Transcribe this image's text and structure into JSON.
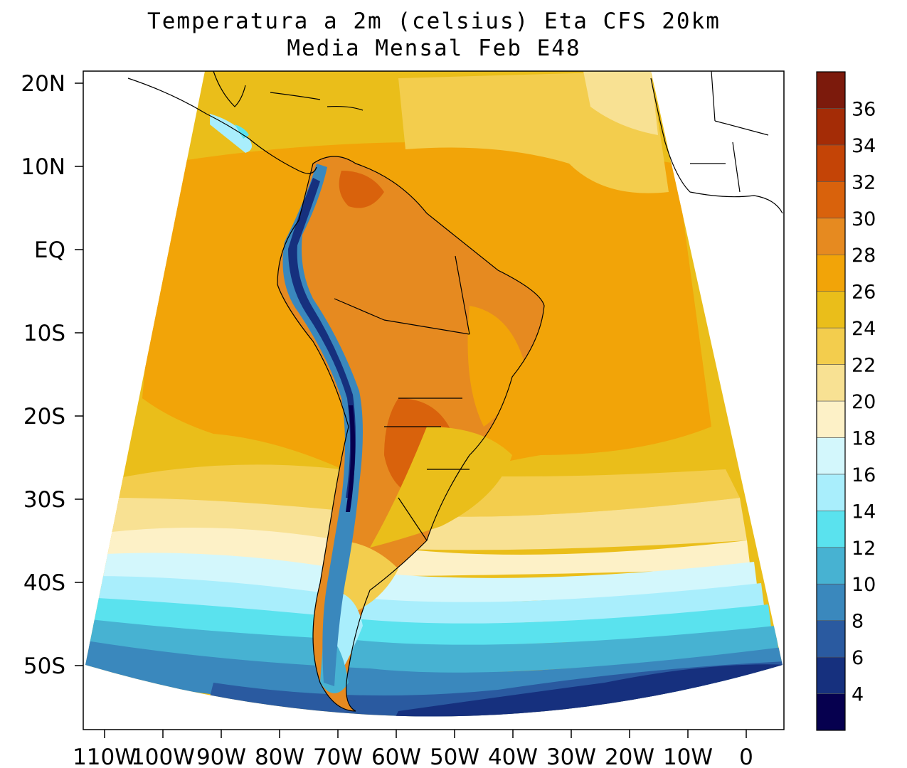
{
  "title": {
    "line1": "Temperatura a 2m (celsius) Eta CFS 20km",
    "line2": "Media Mensal Feb  E48"
  },
  "map": {
    "variable": "2m temperature",
    "units": "celsius",
    "lat_labels": [
      "20N",
      "10N",
      "EQ",
      "10S",
      "20S",
      "30S",
      "40S",
      "50S"
    ],
    "lon_labels": [
      "110W",
      "100W",
      "90W",
      "80W",
      "70W",
      "60W",
      "50W",
      "40W",
      "30W",
      "20W",
      "10W",
      "0"
    ]
  },
  "colorbar": {
    "levels": [
      "4",
      "6",
      "8",
      "10",
      "12",
      "14",
      "16",
      "18",
      "20",
      "22",
      "24",
      "26",
      "28",
      "30",
      "32",
      "34",
      "36"
    ],
    "colors": [
      "#06004f",
      "#16307e",
      "#2a5aa0",
      "#3a88bd",
      "#47b2d2",
      "#5ae2ee",
      "#a9eefc",
      "#d3f7fc",
      "#fdf1c7",
      "#f8e193",
      "#f3cd4d",
      "#eabe1a",
      "#f2a408",
      "#e68a20",
      "#d9620c",
      "#c44406",
      "#a42c06",
      "#7c1a0c"
    ]
  }
}
